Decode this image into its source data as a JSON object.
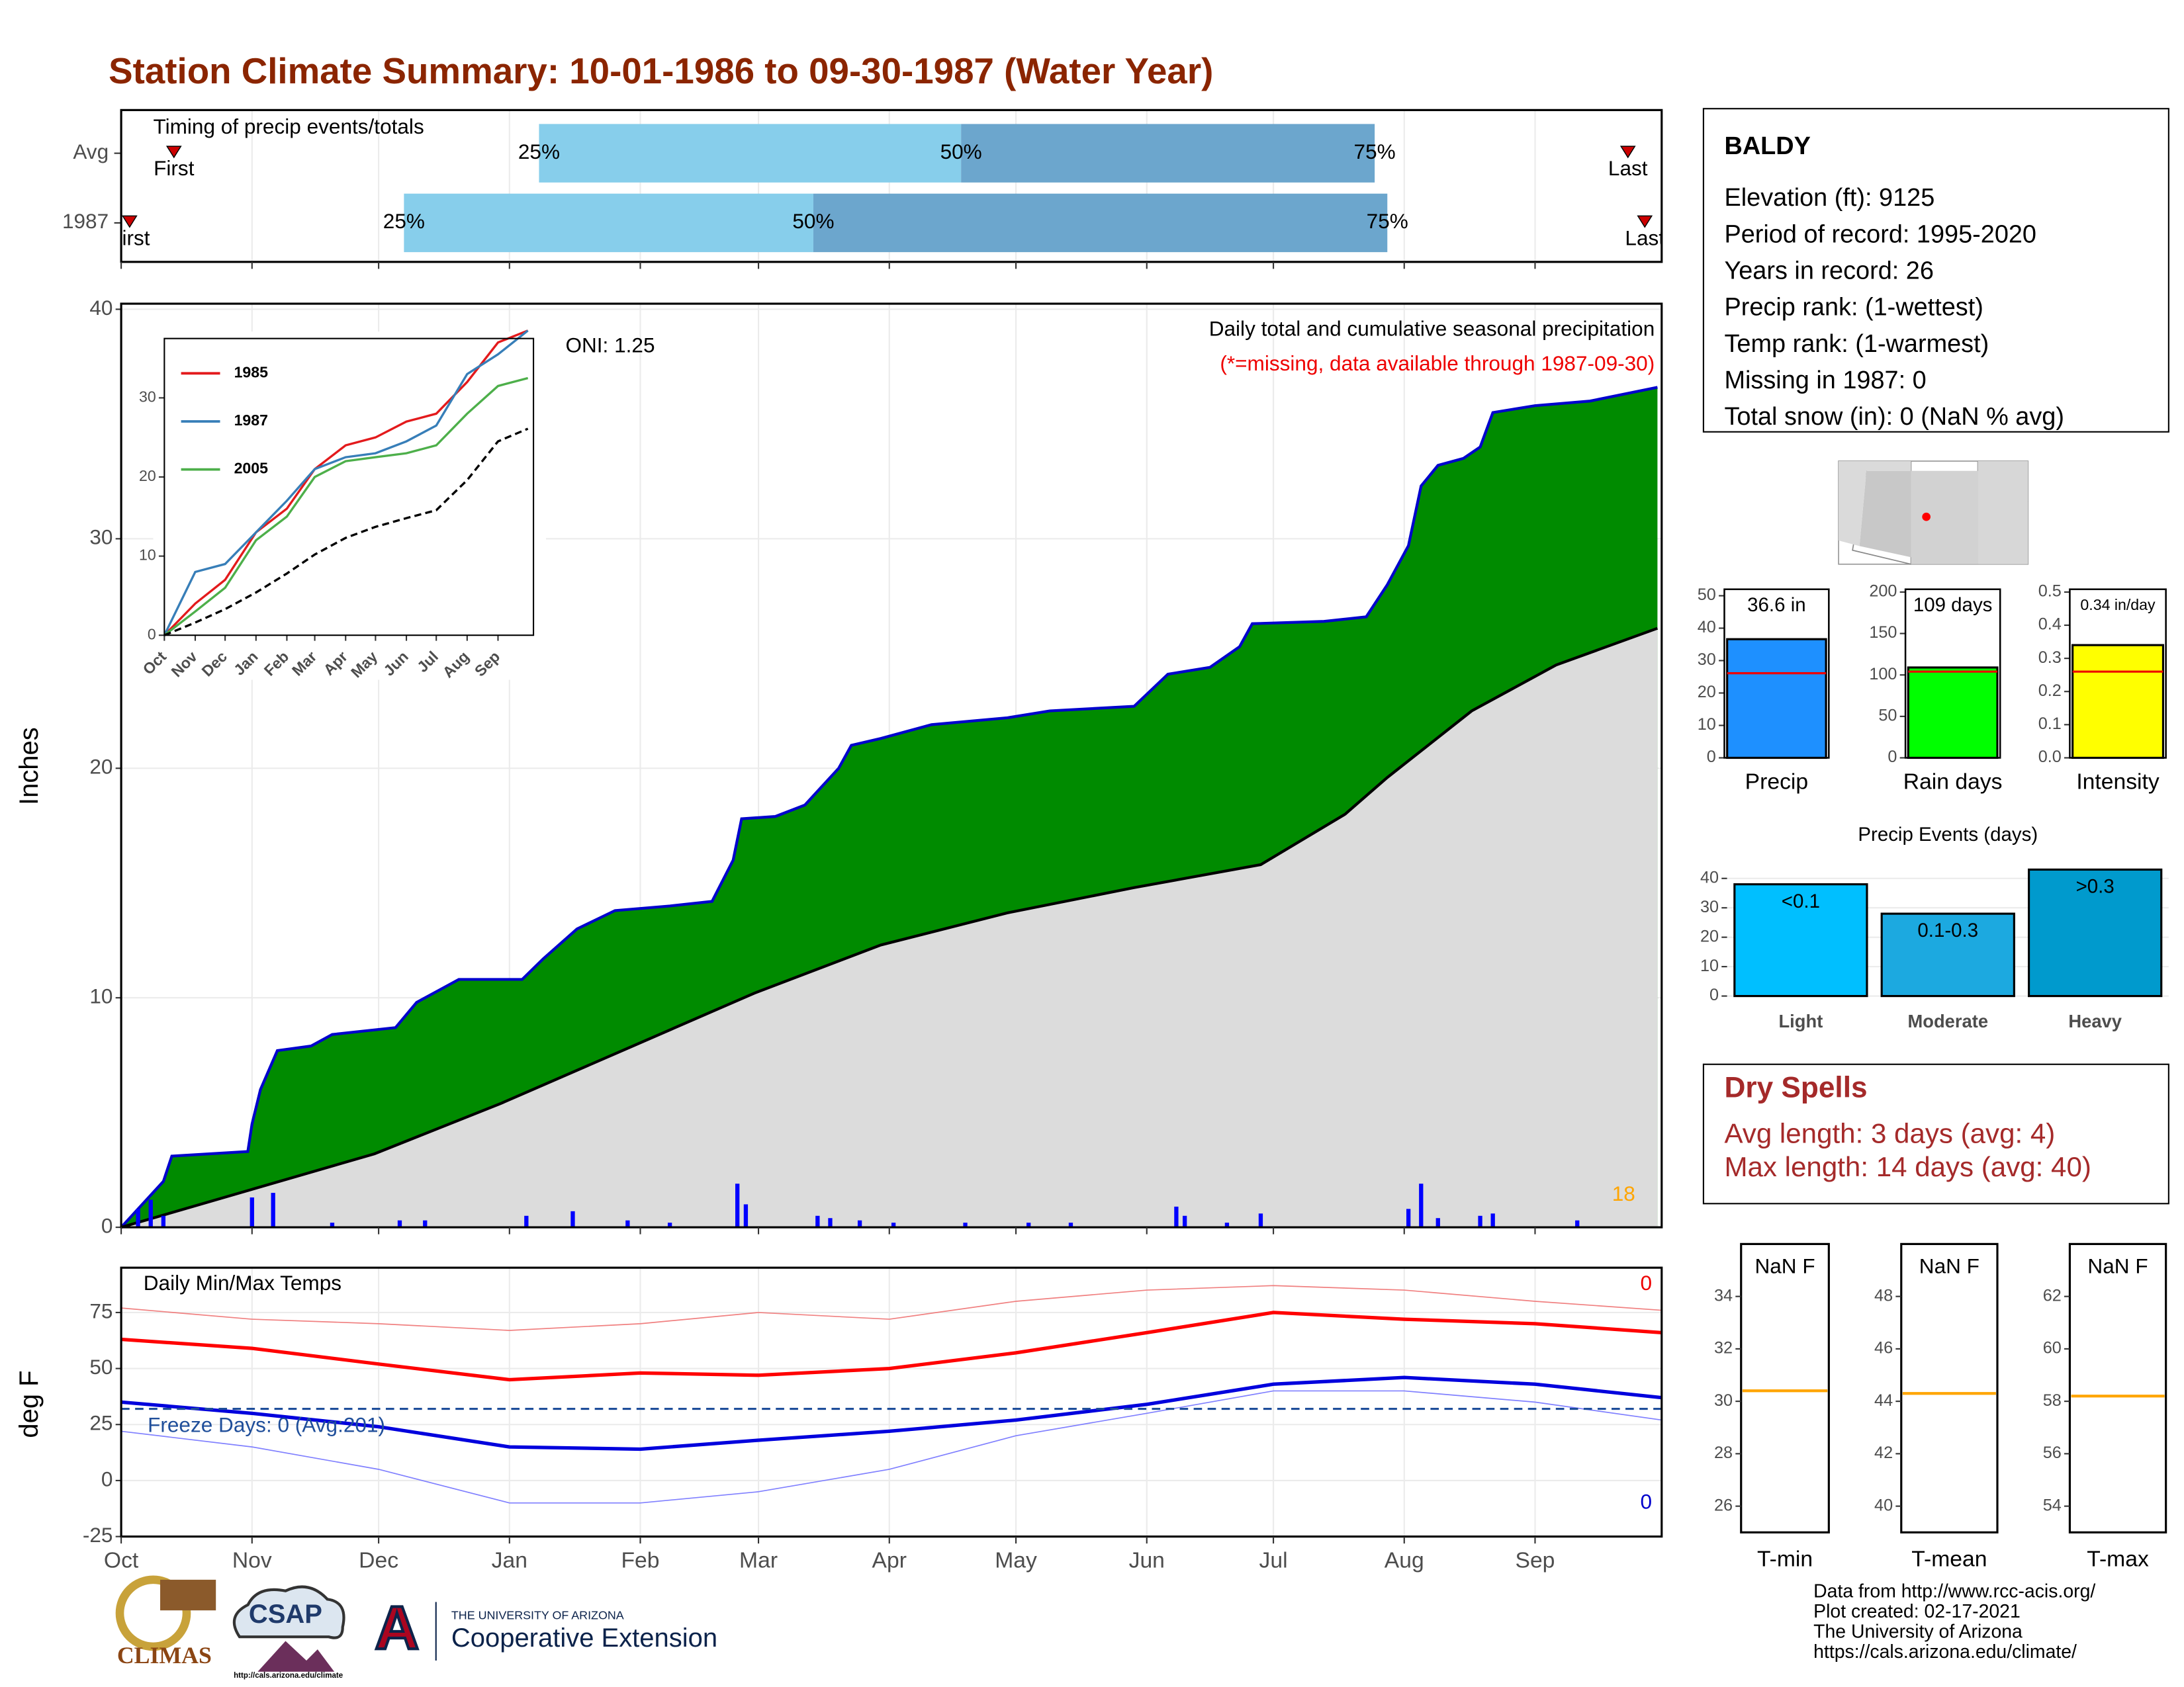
{
  "title": "Station Climate Summary: 10-01-1986 to 09-30-1987 (Water Year)",
  "info": {
    "station": "BALDY",
    "lines": [
      "Elevation (ft): 9125",
      "Period of record: 1995-2020",
      "Years in record: 26",
      "Precip rank:  (1-wettest)",
      "Temp rank:  (1-warmest)",
      "Missing in 1987: 0",
      "Total snow (in): 0 (NaN % avg)"
    ]
  },
  "dry_spells": {
    "title": "Dry Spells",
    "lines": [
      "Avg length: 3 days (avg: 4)",
      "Max length: 14 days (avg: 40)"
    ]
  },
  "footer": [
    "Data from http://www.rcc-acis.org/",
    "Plot created: 02-17-2021",
    "The University of Arizona",
    "https://cals.arizona.edu/climate/"
  ],
  "logos": {
    "climas": "CLIMAS",
    "csap": "CSAP",
    "csap_url": "http://cals.arizona.edu/climate",
    "ua_letter": "A",
    "ua_small": "THE UNIVERSITY OF ARIZONA",
    "ua_name": "Cooperative Extension"
  },
  "chart_data": [
    {
      "type": "timing",
      "title": "Timing of precip events/totals",
      "xlim": [
        0,
        365
      ],
      "rows": [
        {
          "name": "Avg",
          "first": 12.5,
          "q25": 99,
          "q50": 199,
          "q75": 297,
          "last": 357
        },
        {
          "name": "1987",
          "first": 2,
          "q25": 67,
          "q50": 164,
          "q75": 300,
          "last": 361
        }
      ],
      "labels": {
        "first": "First",
        "last": "Last",
        "q25": "25%",
        "q50": "50%",
        "q75": "75%"
      },
      "colors": {
        "q25": "#87ceeb",
        "q50": "#6ca6cd",
        "marker": "#cc0000"
      }
    },
    {
      "type": "area",
      "title": "Daily total and cumulative seasonal precipitation",
      "subtitle": "(*=missing, data available through 1987-09-30)",
      "annotation": "ONI: 1.25",
      "count_label": "18",
      "ylabel": "Inches",
      "xlim": [
        0,
        365
      ],
      "ylim": [
        0,
        40
      ],
      "yticks": [
        0,
        10,
        20,
        30,
        40
      ],
      "grid": true,
      "series": [
        {
          "color": "#008b00",
          "line": "#0000cd",
          "x": [
            0,
            5,
            10,
            12,
            30,
            31,
            33,
            37,
            45,
            50,
            65,
            70,
            75,
            80,
            95,
            100,
            108,
            117,
            130,
            140,
            145,
            147,
            155,
            162,
            165,
            170,
            173,
            180,
            192,
            210,
            220,
            240,
            248,
            258,
            265,
            268,
            285,
            295,
            300,
            305,
            308,
            312,
            318,
            322,
            325,
            335,
            348,
            356,
            364
          ],
          "values": [
            0,
            1.0,
            2.0,
            3.1,
            3.3,
            4.5,
            6.0,
            7.7,
            7.9,
            8.4,
            8.7,
            9.8,
            10.3,
            10.8,
            10.8,
            11.7,
            13.0,
            13.8,
            14.0,
            14.2,
            16.0,
            17.8,
            17.9,
            18.4,
            19.0,
            20.0,
            21.0,
            21.3,
            21.9,
            22.2,
            22.5,
            22.7,
            24.1,
            24.4,
            25.3,
            26.3,
            26.4,
            26.6,
            28.0,
            29.7,
            32.3,
            33.2,
            33.5,
            34.0,
            35.5,
            35.8,
            36.0,
            36.3,
            36.6
          ]
        },
        {
          "color": "#dcdcdc",
          "line": "#000000",
          "x": [
            0,
            30,
            60,
            90,
            120,
            150,
            180,
            210,
            240,
            270,
            290,
            300,
            320,
            340,
            364
          ],
          "values": [
            0,
            1.6,
            3.2,
            5.4,
            7.8,
            10.2,
            12.3,
            13.7,
            14.8,
            15.8,
            18.0,
            19.6,
            22.5,
            24.5,
            26.1
          ]
        }
      ],
      "daily": {
        "color": "#0000ff",
        "x": [
          4,
          7,
          10,
          31,
          36,
          50,
          66,
          72,
          96,
          107,
          120,
          130,
          146,
          148,
          165,
          168,
          175,
          183,
          200,
          215,
          225,
          250,
          252,
          262,
          270,
          305,
          308,
          312,
          322,
          325,
          345
        ],
        "values": [
          0.8,
          1.2,
          0.5,
          1.3,
          1.5,
          0.2,
          0.3,
          0.3,
          0.5,
          0.7,
          0.3,
          0.2,
          1.9,
          1.0,
          0.5,
          0.4,
          0.3,
          0.2,
          0.2,
          0.2,
          0.2,
          0.9,
          0.5,
          0.2,
          0.6,
          0.8,
          1.9,
          0.4,
          0.5,
          0.6,
          0.3
        ]
      }
    },
    {
      "type": "line",
      "xlim": [
        0,
        365
      ],
      "ylim": [
        0,
        37.5
      ],
      "yticks": [
        0,
        10,
        20,
        30
      ],
      "xticks": [
        {
          "value": 0,
          "label": "Oct"
        },
        {
          "value": 31,
          "label": "Nov"
        },
        {
          "value": 61,
          "label": "Dec"
        },
        {
          "value": 92,
          "label": "Jan"
        },
        {
          "value": 123,
          "label": "Feb"
        },
        {
          "value": 151,
          "label": "Mar"
        },
        {
          "value": 182,
          "label": "Apr"
        },
        {
          "value": 212,
          "label": "May"
        },
        {
          "value": 243,
          "label": "Jun"
        },
        {
          "value": 273,
          "label": "Jul"
        },
        {
          "value": 304,
          "label": "Aug"
        },
        {
          "value": 335,
          "label": "Sep"
        }
      ],
      "x": [
        0,
        31,
        61,
        92,
        123,
        151,
        182,
        212,
        243,
        273,
        304,
        335,
        365
      ],
      "series": [
        {
          "name": "1985",
          "color": "#e31a1c",
          "values": [
            0,
            4,
            7,
            13,
            16,
            21,
            24,
            25,
            27,
            28,
            32,
            37,
            38.5
          ]
        },
        {
          "name": "1987",
          "color": "#377eb8",
          "values": [
            0,
            8,
            9,
            13,
            17,
            21,
            22.5,
            23,
            24.5,
            26.5,
            33,
            35.5,
            38.5
          ]
        },
        {
          "name": "2005",
          "color": "#4daf4a",
          "values": [
            0,
            3,
            6,
            12,
            15,
            20,
            22,
            22.5,
            23,
            24,
            28,
            31.5,
            32.5
          ]
        },
        {
          "color": "#000000",
          "dash": true,
          "values": [
            0,
            1.6,
            3.3,
            5.4,
            7.8,
            10.2,
            12.3,
            13.7,
            14.8,
            15.8,
            19.6,
            24.5,
            26.1
          ]
        }
      ]
    },
    {
      "type": "temps",
      "title": "Daily Min/Max Temps",
      "ylabel": "deg F",
      "annotation": "Freeze Days: 0 (Avg:201)",
      "freeze": 32,
      "max_label": "0",
      "min_label": "0",
      "xlim": [
        0,
        365
      ],
      "ylim": [
        -25,
        95
      ],
      "yticks": [
        -25,
        0,
        25,
        50,
        75
      ],
      "xticks": [
        {
          "value": 0,
          "label": "Oct"
        },
        {
          "value": 31,
          "label": "Nov"
        },
        {
          "value": 61,
          "label": "Dec"
        },
        {
          "value": 92,
          "label": "Jan"
        },
        {
          "value": 123,
          "label": "Feb"
        },
        {
          "value": 151,
          "label": "Mar"
        },
        {
          "value": 182,
          "label": "Apr"
        },
        {
          "value": 212,
          "label": "May"
        },
        {
          "value": 243,
          "label": "Jun"
        },
        {
          "value": 273,
          "label": "Jul"
        },
        {
          "value": 304,
          "label": "Aug"
        },
        {
          "value": 335,
          "label": "Sep"
        }
      ],
      "x": [
        0,
        31,
        61,
        92,
        123,
        151,
        182,
        212,
        243,
        273,
        304,
        335,
        365
      ],
      "series": [
        {
          "color": "#f08080",
          "width": 0.8,
          "values": [
            77,
            72,
            70,
            67,
            70,
            75,
            72,
            80,
            85,
            87,
            85,
            80,
            76
          ]
        },
        {
          "color": "#ff0000",
          "width": 2.5,
          "values": [
            63,
            59,
            52,
            45,
            48,
            47,
            50,
            57,
            66,
            75,
            72,
            70,
            66
          ]
        },
        {
          "color": "#8080ff",
          "width": 0.8,
          "values": [
            22,
            15,
            5,
            -10,
            -10,
            -5,
            5,
            20,
            30,
            40,
            40,
            35,
            27
          ]
        },
        {
          "color": "#0000dd",
          "width": 2.5,
          "values": [
            35,
            30,
            24,
            15,
            14,
            18,
            22,
            27,
            34,
            43,
            46,
            43,
            37
          ]
        }
      ]
    },
    {
      "type": "mini_bar",
      "categories": [
        "Precip"
      ],
      "values": [
        36.6
      ],
      "value_labels": [
        "36.6 in"
      ],
      "avg": [
        26.1
      ],
      "color": "#1e90ff",
      "ylim": [
        0,
        52
      ],
      "yticks": [
        0,
        10,
        20,
        30,
        40,
        50
      ]
    },
    {
      "type": "mini_bar",
      "categories": [
        "Rain days"
      ],
      "values": [
        109
      ],
      "value_labels": [
        "109 days"
      ],
      "avg": [
        104
      ],
      "color": "#00ff00",
      "ylim": [
        0,
        200
      ],
      "yticks": [
        0,
        50,
        100,
        150,
        200
      ]
    },
    {
      "type": "mini_bar",
      "categories": [
        "Intensity"
      ],
      "values": [
        0.34
      ],
      "value_labels": [
        "0.34 in/day"
      ],
      "avg": [
        0.26
      ],
      "color": "#ffff00",
      "ylim": [
        0,
        0.5
      ],
      "yticks": [
        {
          "value": 0,
          "label": "0.0"
        },
        0.1,
        0.2,
        0.3,
        0.4,
        0.5
      ]
    },
    {
      "type": "bar",
      "title": "Precip Events (days)",
      "categories": [
        "Light",
        "Moderate",
        "Heavy"
      ],
      "values": [
        38,
        28,
        43
      ],
      "bar_labels": [
        "<0.1",
        "0.1-0.3",
        ">0.3"
      ],
      "colors": [
        "#00bfff",
        "#1ca9e0",
        "#009acd"
      ],
      "ylim": [
        0,
        45
      ],
      "yticks": [
        0,
        10,
        20,
        30,
        40
      ]
    },
    {
      "type": "temp_box",
      "categories": [
        "T-min"
      ],
      "label": "NaN F",
      "avg": 30.4,
      "color": "#ffa500",
      "ylim": [
        25,
        36
      ],
      "yticks": [
        26,
        28,
        30,
        32,
        34
      ]
    },
    {
      "type": "temp_box",
      "categories": [
        "T-mean"
      ],
      "label": "NaN F",
      "avg": 44.3,
      "color": "#ffa500",
      "ylim": [
        39,
        50
      ],
      "yticks": [
        40,
        42,
        44,
        46,
        48
      ]
    },
    {
      "type": "temp_box",
      "categories": [
        "T-max"
      ],
      "label": "NaN F",
      "avg": 58.2,
      "color": "#ffa500",
      "ylim": [
        53,
        64
      ],
      "yticks": [
        54,
        56,
        58,
        60,
        62
      ]
    }
  ]
}
